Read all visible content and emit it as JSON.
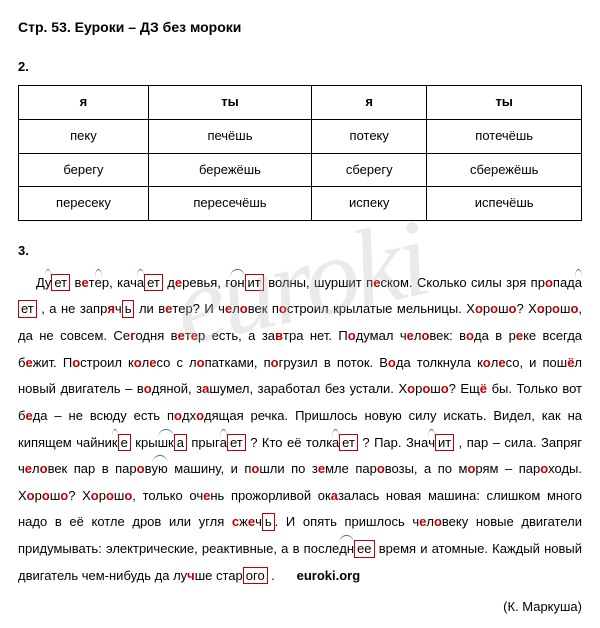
{
  "header": "Стр. 53. Еуроки – ДЗ без мороки",
  "section2": {
    "num": "2.",
    "columns": [
      "я",
      "ты",
      "я",
      "ты"
    ],
    "rows": [
      [
        "пеку",
        "печёшь",
        "потеку",
        "потечёшь"
      ],
      [
        "берегу",
        "бережёшь",
        "сберегу",
        "сбережёшь"
      ],
      [
        "пересеку",
        "пересечёшь",
        "испеку",
        "испечёшь"
      ]
    ]
  },
  "section3": {
    "num": "3.",
    "author": "(К. Маркуша)",
    "link": "euroki.org"
  },
  "watermark": "euroki",
  "colors": {
    "stress": "#c00000",
    "arc": "#3a6fb0",
    "text": "#000000",
    "border": "#000000"
  }
}
